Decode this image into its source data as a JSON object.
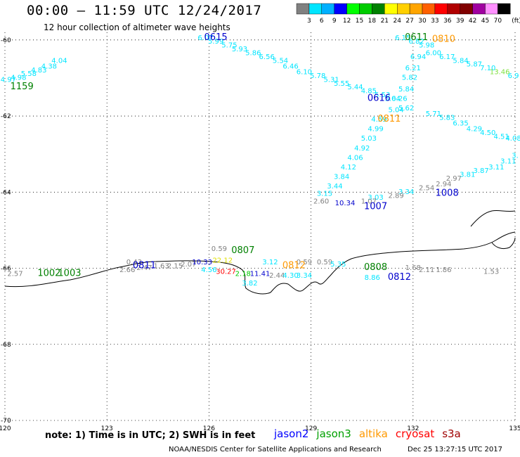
{
  "title": "00:00 – 11:59 UTC 12/24/2017",
  "subtitle": "12 hour collection of altimeter wave heights",
  "colorbar": {
    "unit": "(ft)",
    "ticks": [
      "3",
      "6",
      "9",
      "12",
      "15",
      "18",
      "21",
      "24",
      "27",
      "30",
      "33",
      "36",
      "39",
      "42",
      "45",
      "70"
    ],
    "colors": [
      "#808080",
      "#00e5ff",
      "#00b0ff",
      "#0000ff",
      "#00ff00",
      "#00cc00",
      "#008000",
      "#ffff00",
      "#ffd000",
      "#ffa500",
      "#ff6000",
      "#ff0000",
      "#b00000",
      "#800000",
      "#a000a0",
      "#ff90ff",
      "#000000"
    ]
  },
  "map": {
    "lon_min": 120,
    "lon_max": 135,
    "lat_min": -70,
    "lat_max": -59.8,
    "lon_ticks": [
      "120",
      "123",
      "126",
      "129",
      "132",
      "135"
    ],
    "lat_ticks": [
      "-60",
      "-62",
      "-64",
      "-66",
      "-68",
      "-70"
    ],
    "grid": "dotted"
  },
  "observations": [
    {
      "text": "6.07",
      "lon": 125.9,
      "lat": -60.0,
      "color": "#00e5ff"
    },
    {
      "text": "5.99",
      "lon": 126.2,
      "lat": -60.1,
      "color": "#00e5ff"
    },
    {
      "text": "5.75",
      "lon": 126.6,
      "lat": -60.2,
      "color": "#00e5ff"
    },
    {
      "text": "5.93",
      "lon": 126.9,
      "lat": -60.3,
      "color": "#00e5ff"
    },
    {
      "text": "5.86",
      "lon": 127.3,
      "lat": -60.4,
      "color": "#00e5ff"
    },
    {
      "text": "6.56",
      "lon": 127.7,
      "lat": -60.5,
      "color": "#00e5ff"
    },
    {
      "text": "5.54",
      "lon": 128.1,
      "lat": -60.6,
      "color": "#00e5ff"
    },
    {
      "text": "6.46",
      "lon": 128.4,
      "lat": -60.75,
      "color": "#00e5ff"
    },
    {
      "text": "6.10",
      "lon": 128.8,
      "lat": -60.9,
      "color": "#00e5ff"
    },
    {
      "text": "5.78",
      "lon": 129.2,
      "lat": -61.0,
      "color": "#00e5ff"
    },
    {
      "text": "5.31",
      "lon": 129.6,
      "lat": -61.1,
      "color": "#00e5ff"
    },
    {
      "text": "5.55",
      "lon": 129.9,
      "lat": -61.2,
      "color": "#00e5ff"
    },
    {
      "text": "5.44",
      "lon": 130.3,
      "lat": -61.3,
      "color": "#00e5ff"
    },
    {
      "text": "4.85",
      "lon": 130.7,
      "lat": -61.4,
      "color": "#00e5ff"
    },
    {
      "text": "5.53",
      "lon": 131.1,
      "lat": -61.5,
      "color": "#00e5ff"
    },
    {
      "text": "5.04",
      "lon": 131.4,
      "lat": -61.6,
      "color": "#00e5ff"
    },
    {
      "text": "5.04",
      "lon": 131.5,
      "lat": -61.9,
      "color": "#00e5ff"
    },
    {
      "text": "5.62",
      "lon": 131.8,
      "lat": -61.85,
      "color": "#00e5ff"
    },
    {
      "text": "6.15",
      "lon": 131.7,
      "lat": -60.0,
      "color": "#00e5ff"
    },
    {
      "text": "6.82",
      "lon": 132.1,
      "lat": -60.1,
      "color": "#00e5ff"
    },
    {
      "text": "6.94",
      "lon": 132.15,
      "lat": -60.5,
      "color": "#00e5ff"
    },
    {
      "text": "6.21",
      "lon": 132.0,
      "lat": -60.8,
      "color": "#00e5ff"
    },
    {
      "text": "5.82",
      "lon": 131.9,
      "lat": -61.05,
      "color": "#00e5ff"
    },
    {
      "text": "5.84",
      "lon": 131.8,
      "lat": -61.35,
      "color": "#00e5ff"
    },
    {
      "text": "6.26",
      "lon": 131.6,
      "lat": -61.6,
      "color": "#00e5ff"
    },
    {
      "text": "6.00",
      "lon": 132.6,
      "lat": -60.4,
      "color": "#00e5ff"
    },
    {
      "text": "6.17",
      "lon": 133.0,
      "lat": -60.5,
      "color": "#00e5ff"
    },
    {
      "text": "5.84",
      "lon": 133.4,
      "lat": -60.6,
      "color": "#00e5ff"
    },
    {
      "text": "5.87",
      "lon": 133.8,
      "lat": -60.7,
      "color": "#00e5ff"
    },
    {
      "text": "7.10",
      "lon": 134.2,
      "lat": -60.8,
      "color": "#00e5ff"
    },
    {
      "text": "13.46",
      "lon": 134.55,
      "lat": -60.9,
      "color": "#80e040"
    },
    {
      "text": "6.9",
      "lon": 134.95,
      "lat": -61.0,
      "color": "#00e5ff"
    },
    {
      "text": "5.98",
      "lon": 132.4,
      "lat": -60.2,
      "color": "#00e5ff"
    },
    {
      "text": "5.71",
      "lon": 132.6,
      "lat": -62.0,
      "color": "#00e5ff"
    },
    {
      "text": "5.83",
      "lon": 133.0,
      "lat": -62.1,
      "color": "#00e5ff"
    },
    {
      "text": "6.35",
      "lon": 133.4,
      "lat": -62.25,
      "color": "#00e5ff"
    },
    {
      "text": "4.29",
      "lon": 133.8,
      "lat": -62.4,
      "color": "#00e5ff"
    },
    {
      "text": "4.50",
      "lon": 134.2,
      "lat": -62.5,
      "color": "#00e5ff"
    },
    {
      "text": "4.51",
      "lon": 134.6,
      "lat": -62.6,
      "color": "#00e5ff"
    },
    {
      "text": "4.08",
      "lon": 134.95,
      "lat": -62.65,
      "color": "#00e5ff"
    },
    {
      "text": "4.59",
      "lon": 131.0,
      "lat": -62.15,
      "color": "#00e5ff"
    },
    {
      "text": "4.99",
      "lon": 130.9,
      "lat": -62.4,
      "color": "#00e5ff"
    },
    {
      "text": "5.03",
      "lon": 130.7,
      "lat": -62.65,
      "color": "#00e5ff"
    },
    {
      "text": "4.92",
      "lon": 130.5,
      "lat": -62.9,
      "color": "#00e5ff"
    },
    {
      "text": "4.06",
      "lon": 130.3,
      "lat": -63.15,
      "color": "#00e5ff"
    },
    {
      "text": "4.12",
      "lon": 130.1,
      "lat": -63.4,
      "color": "#00e5ff"
    },
    {
      "text": "3.84",
      "lon": 129.9,
      "lat": -63.65,
      "color": "#00e5ff"
    },
    {
      "text": "3.44",
      "lon": 129.7,
      "lat": -63.9,
      "color": "#00e5ff"
    },
    {
      "text": "3.15",
      "lon": 129.4,
      "lat": -64.1,
      "color": "#00e5ff"
    },
    {
      "text": "3.03",
      "lon": 130.9,
      "lat": -64.2,
      "color": "#00e5ff"
    },
    {
      "text": "3.34",
      "lon": 131.8,
      "lat": -64.05,
      "color": "#00e5ff"
    },
    {
      "text": "2.89",
      "lon": 131.5,
      "lat": -64.15,
      "color": "#808080"
    },
    {
      "text": "2.60",
      "lon": 129.3,
      "lat": -64.3,
      "color": "#808080"
    },
    {
      "text": "10.34",
      "lon": 130.0,
      "lat": -64.35,
      "color": "#0000cc"
    },
    {
      "text": "1.07",
      "lon": 130.7,
      "lat": -64.3,
      "color": "#808080"
    },
    {
      "text": "2.54",
      "lon": 132.4,
      "lat": -63.95,
      "color": "#808080"
    },
    {
      "text": "2.94",
      "lon": 132.9,
      "lat": -63.85,
      "color": "#808080"
    },
    {
      "text": "2.97",
      "lon": 133.2,
      "lat": -63.7,
      "color": "#808080"
    },
    {
      "text": "3.81",
      "lon": 133.6,
      "lat": -63.6,
      "color": "#00e5ff"
    },
    {
      "text": "3.87",
      "lon": 134.0,
      "lat": -63.5,
      "color": "#00e5ff"
    },
    {
      "text": "3.11",
      "lon": 134.45,
      "lat": -63.4,
      "color": "#00e5ff"
    },
    {
      "text": "3.11",
      "lon": 134.8,
      "lat": -63.25,
      "color": "#00e5ff"
    },
    {
      "text": "3.",
      "lon": 135.0,
      "lat": -63.1,
      "color": "#00e5ff"
    },
    {
      "text": "4.04",
      "lon": 121.6,
      "lat": -60.6,
      "color": "#00e5ff"
    },
    {
      "text": "4.38",
      "lon": 121.3,
      "lat": -60.75,
      "color": "#00e5ff"
    },
    {
      "text": "4.83",
      "lon": 121.0,
      "lat": -60.85,
      "color": "#00e5ff"
    },
    {
      "text": "5.58",
      "lon": 120.7,
      "lat": -60.95,
      "color": "#00e5ff"
    },
    {
      "text": "4.98",
      "lon": 120.4,
      "lat": -61.05,
      "color": "#00e5ff"
    },
    {
      "text": "4.97",
      "lon": 120.1,
      "lat": -61.1,
      "color": "#00e5ff"
    },
    {
      "text": "0.59",
      "lon": 126.3,
      "lat": -65.55,
      "color": "#808080"
    },
    {
      "text": "0.43",
      "lon": 123.8,
      "lat": -65.9,
      "color": "#808080"
    },
    {
      "text": "2.66",
      "lon": 123.6,
      "lat": -66.1,
      "color": "#808080"
    },
    {
      "text": "2.47",
      "lon": 124.1,
      "lat": -66.05,
      "color": "#808080"
    },
    {
      "text": "1.63",
      "lon": 124.6,
      "lat": -66.0,
      "color": "#808080"
    },
    {
      "text": "2.15",
      "lon": 125.0,
      "lat": -66.0,
      "color": "#808080"
    },
    {
      "text": "2.07",
      "lon": 125.4,
      "lat": -65.95,
      "color": "#808080"
    },
    {
      "text": "10.33",
      "lon": 125.8,
      "lat": -65.9,
      "color": "#0000cc"
    },
    {
      "text": "22.12",
      "lon": 126.4,
      "lat": -65.85,
      "color": "#e0e000"
    },
    {
      "text": "4.56",
      "lon": 126.0,
      "lat": -66.1,
      "color": "#00e5ff"
    },
    {
      "text": "30.27",
      "lon": 126.5,
      "lat": -66.15,
      "color": "#ff0000"
    },
    {
      "text": "2.18",
      "lon": 127.0,
      "lat": -66.2,
      "color": "#00cc00"
    },
    {
      "text": "11.41",
      "lon": 127.5,
      "lat": -66.2,
      "color": "#0000cc"
    },
    {
      "text": "2.44",
      "lon": 128.0,
      "lat": -66.25,
      "color": "#808080"
    },
    {
      "text": "4.30",
      "lon": 128.4,
      "lat": -66.25,
      "color": "#00e5ff"
    },
    {
      "text": "3.34",
      "lon": 128.8,
      "lat": -66.25,
      "color": "#00e5ff"
    },
    {
      "text": "3.12",
      "lon": 127.8,
      "lat": -65.9,
      "color": "#00e5ff"
    },
    {
      "text": "0.59",
      "lon": 128.8,
      "lat": -65.9,
      "color": "#808080"
    },
    {
      "text": "0.59",
      "lon": 129.4,
      "lat": -65.9,
      "color": "#808080"
    },
    {
      "text": "5.35",
      "lon": 129.8,
      "lat": -65.95,
      "color": "#00e5ff"
    },
    {
      "text": "3.82",
      "lon": 127.2,
      "lat": -66.45,
      "color": "#00e5ff"
    },
    {
      "text": "2.57",
      "lon": 120.3,
      "lat": -66.2,
      "color": "#808080"
    },
    {
      "text": "1.68",
      "lon": 132.0,
      "lat": -66.05,
      "color": "#808080"
    },
    {
      "text": "2.11",
      "lon": 132.4,
      "lat": -66.1,
      "color": "#808080"
    },
    {
      "text": "1.86",
      "lon": 132.9,
      "lat": -66.1,
      "color": "#808080"
    },
    {
      "text": "1.53",
      "lon": 134.3,
      "lat": -66.15,
      "color": "#808080"
    },
    {
      "text": "8.86",
      "lon": 130.8,
      "lat": -66.3,
      "color": "#00e5ff"
    }
  ],
  "passes": [
    {
      "text": "0615",
      "lon": 126.2,
      "lat": -60.0,
      "color": "#0000cc"
    },
    {
      "text": "0611",
      "lon": 132.1,
      "lat": -60.0,
      "color": "#008000"
    },
    {
      "text": "0810",
      "lon": 132.9,
      "lat": -60.05,
      "color": "#ff9900"
    },
    {
      "text": "1159",
      "lon": 120.5,
      "lat": -61.3,
      "color": "#008000"
    },
    {
      "text": "0616",
      "lon": 131.0,
      "lat": -61.6,
      "color": "#0000cc"
    },
    {
      "text": "0811",
      "lon": 131.3,
      "lat": -62.15,
      "color": "#ff9900"
    },
    {
      "text": "1008",
      "lon": 133.0,
      "lat": -64.1,
      "color": "#0000cc"
    },
    {
      "text": "1007",
      "lon": 130.9,
      "lat": -64.45,
      "color": "#0000cc"
    },
    {
      "text": "0807",
      "lon": 127.0,
      "lat": -65.6,
      "color": "#008000"
    },
    {
      "text": "0811",
      "lon": 124.1,
      "lat": -66.0,
      "color": "#0000cc"
    },
    {
      "text": "0812",
      "lon": 128.5,
      "lat": -66.0,
      "color": "#ff9900"
    },
    {
      "text": "0808",
      "lon": 130.9,
      "lat": -66.05,
      "color": "#008000"
    },
    {
      "text": "1002",
      "lon": 121.3,
      "lat": -66.2,
      "color": "#008000"
    },
    {
      "text": "1003",
      "lon": 121.9,
      "lat": -66.2,
      "color": "#008000"
    },
    {
      "text": "0812",
      "lon": 131.6,
      "lat": -66.3,
      "color": "#0000cc"
    }
  ],
  "note": "note:  1) Time is in UTC;  2) SWH is in feet",
  "legend": [
    {
      "name": "jason2",
      "color": "#0000ff"
    },
    {
      "name": "jason3",
      "color": "#00a000"
    },
    {
      "name": "altika",
      "color": "#ff9900"
    },
    {
      "name": "cryosat",
      "color": "#ff0000"
    },
    {
      "name": "s3a",
      "color": "#a00000"
    }
  ],
  "credit": "NOAA/NESDIS Center for Satellite Applications and Research",
  "credit_time": "Dec 25 13:27:15 UTC 2017"
}
